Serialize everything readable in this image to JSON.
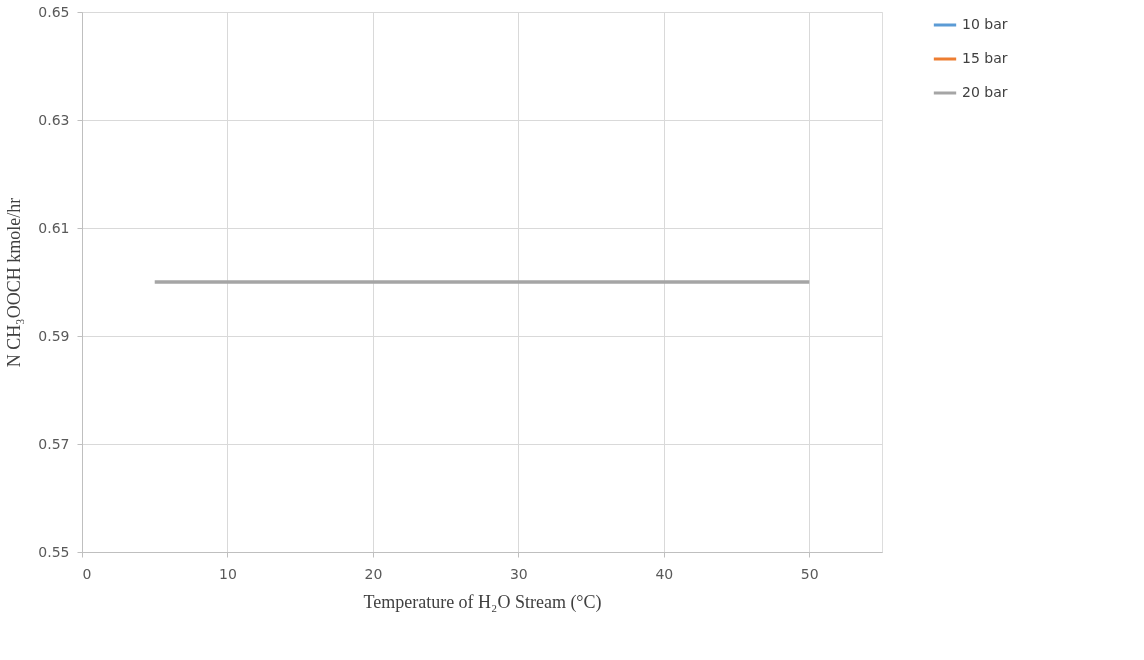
{
  "chart_data": {
    "type": "line",
    "xlabel": "Temperature of H₂O Stream (°C)",
    "ylabel": "N CH₃OOCH kmole/hr",
    "x": [
      5,
      50
    ],
    "series": [
      {
        "name": "10 bar",
        "color": "#5b9bd5",
        "values": [
          null,
          null
        ]
      },
      {
        "name": "15 bar",
        "color": "#ed7d31",
        "values": [
          null,
          null
        ]
      },
      {
        "name": "20 bar",
        "color": "#a5a5a5",
        "values": [
          0.6,
          0.6
        ]
      }
    ],
    "xlim": [
      0,
      55
    ],
    "xticks": [
      0,
      10,
      20,
      30,
      40,
      50
    ],
    "ylim": [
      0.55,
      0.65
    ],
    "yticks": [
      0.55,
      0.57,
      0.59,
      0.61,
      0.63,
      0.65
    ],
    "grid": true,
    "legend": "right",
    "marker": "none",
    "line_style": "solid"
  }
}
